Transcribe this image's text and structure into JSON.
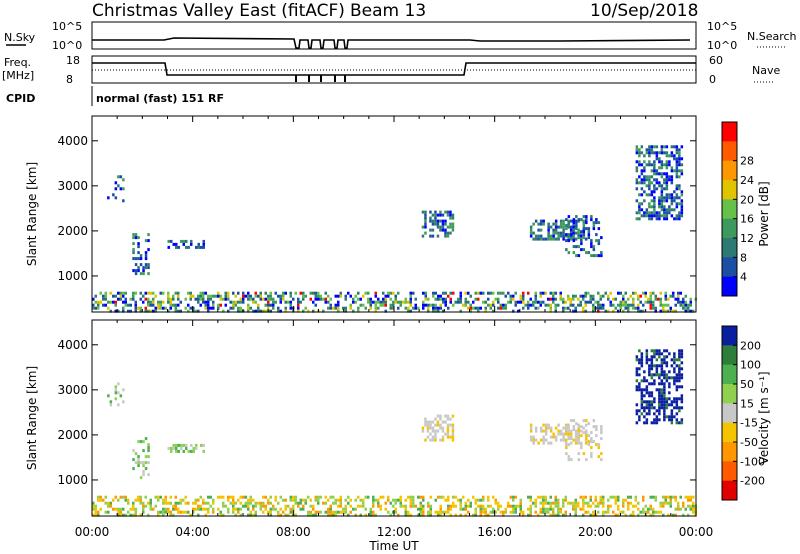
{
  "header": {
    "title": "Christmas Valley East (fitACF)",
    "beam": "Beam 13",
    "date": "10/Sep/2018"
  },
  "top_panels": {
    "nsky_label": "N.Sky",
    "nsky_ticks": [
      "10^5",
      "10^0"
    ],
    "nsearch_label": "N.Search",
    "nsearch_ticks": [
      "10^5",
      "10^0"
    ],
    "freq_label": "Freq.",
    "freq_unit": "[MHz]",
    "freq_ticks": [
      "18",
      "8"
    ],
    "nave_label": "Nave",
    "nave_ticks": [
      "60",
      "0"
    ],
    "cpid_label": "CPID",
    "cpid_text": "normal (fast) 151 RF"
  },
  "chart_data": [
    {
      "type": "heatmap",
      "name": "power-panel",
      "ylabel": "Slant Range [km]",
      "ylim": [
        200,
        4550
      ],
      "yticks": [
        "1000",
        "2000",
        "3000",
        "4000"
      ],
      "colorbar_label": "Power [dB]",
      "colorbar_ticks": [
        "4",
        "8",
        "12",
        "16",
        "20",
        "24",
        "28"
      ],
      "colors": [
        "#0000ff",
        "#1c4fa3",
        "#2d7a72",
        "#3e9a5c",
        "#66c04a",
        "#e0c400",
        "#ff9800",
        "#ff5a00",
        "#ff0000"
      ],
      "regions": [
        {
          "t": [
            0.0,
            24.0
          ],
          "r": [
            200,
            650
          ],
          "density": 0.45
        },
        {
          "t": [
            0.6,
            1.2
          ],
          "r": [
            2650,
            3300
          ],
          "density": 0.25
        },
        {
          "t": [
            1.6,
            2.2
          ],
          "r": [
            1050,
            1950
          ],
          "density": 0.35
        },
        {
          "t": [
            3.0,
            4.4
          ],
          "r": [
            1650,
            1800
          ],
          "density": 0.6
        },
        {
          "t": [
            13.1,
            14.3
          ],
          "r": [
            1900,
            2450
          ],
          "density": 0.55
        },
        {
          "t": [
            17.4,
            19.6
          ],
          "r": [
            1850,
            2250
          ],
          "density": 0.55
        },
        {
          "t": [
            18.8,
            20.2
          ],
          "r": [
            1450,
            2350
          ],
          "density": 0.35
        },
        {
          "t": [
            21.6,
            23.4
          ],
          "r": [
            2300,
            3900
          ],
          "density": 0.55
        }
      ]
    },
    {
      "type": "heatmap",
      "name": "velocity-panel",
      "ylabel": "Slant Range [km]",
      "ylim": [
        200,
        4550
      ],
      "yticks": [
        "1000",
        "2000",
        "3000",
        "4000"
      ],
      "xlabel": "Time UT",
      "xticks": [
        "00:00",
        "04:00",
        "08:00",
        "12:00",
        "16:00",
        "20:00",
        "00:00"
      ],
      "xlim": [
        0,
        24
      ],
      "colorbar_label": "Velocity [m s⁻¹]",
      "colorbar_ticks": [
        "200",
        "100",
        "50",
        "15",
        "-15",
        "-50",
        "-100",
        "-200"
      ],
      "colors": [
        "#0a1fa0",
        "#2e7d3a",
        "#4caf50",
        "#8fd14f",
        "#c8c8c8",
        "#f5c400",
        "#ff9800",
        "#ff5a00",
        "#e10000"
      ],
      "regions": [
        {
          "t": [
            0.0,
            24.0
          ],
          "r": [
            200,
            650
          ],
          "density": 0.45
        },
        {
          "t": [
            0.6,
            1.2
          ],
          "r": [
            2650,
            3300
          ],
          "density": 0.22
        },
        {
          "t": [
            1.6,
            2.2
          ],
          "r": [
            1050,
            1950
          ],
          "density": 0.3
        },
        {
          "t": [
            3.0,
            4.4
          ],
          "r": [
            1650,
            1800
          ],
          "density": 0.55
        },
        {
          "t": [
            13.1,
            14.3
          ],
          "r": [
            1900,
            2450
          ],
          "density": 0.5
        },
        {
          "t": [
            17.4,
            19.6
          ],
          "r": [
            1850,
            2250
          ],
          "density": 0.5
        },
        {
          "t": [
            18.8,
            20.2
          ],
          "r": [
            1450,
            2350
          ],
          "density": 0.3
        },
        {
          "t": [
            21.6,
            23.4
          ],
          "r": [
            2300,
            3900
          ],
          "density": 0.55
        }
      ]
    }
  ]
}
